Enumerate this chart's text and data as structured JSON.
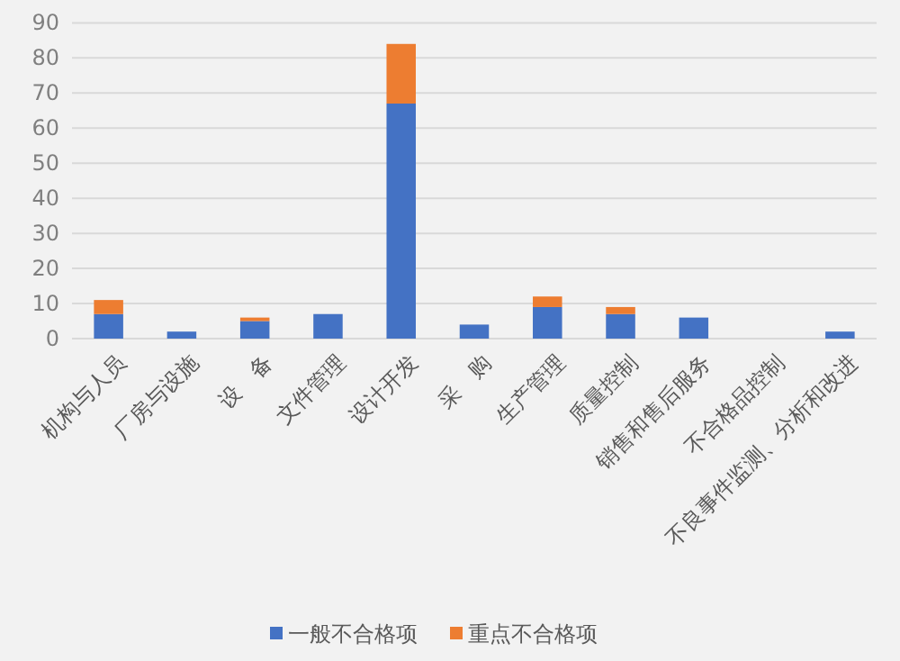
{
  "chart_data": {
    "type": "bar",
    "stacked": true,
    "categories": [
      "机构与人员",
      "厂房与设施",
      "设　备",
      "文件管理",
      "设计开发",
      "采　购",
      "生产管理",
      "质量控制",
      "销售和售后服务",
      "不合格品控制",
      "不良事件监测、分析和改进"
    ],
    "series": [
      {
        "name": "一般不合格项",
        "color": "#4472c4",
        "values": [
          7,
          2,
          5,
          7,
          67,
          4,
          9,
          7,
          6,
          0,
          2
        ]
      },
      {
        "name": "重点不合格项",
        "color": "#ed7d31",
        "values": [
          4,
          0,
          1,
          0,
          17,
          0,
          3,
          2,
          0,
          0,
          0
        ]
      }
    ],
    "ylim": [
      0,
      90
    ],
    "yticks": [
      0,
      10,
      20,
      30,
      40,
      50,
      60,
      70,
      80,
      90
    ],
    "grid": "y",
    "legend": "bottom"
  }
}
